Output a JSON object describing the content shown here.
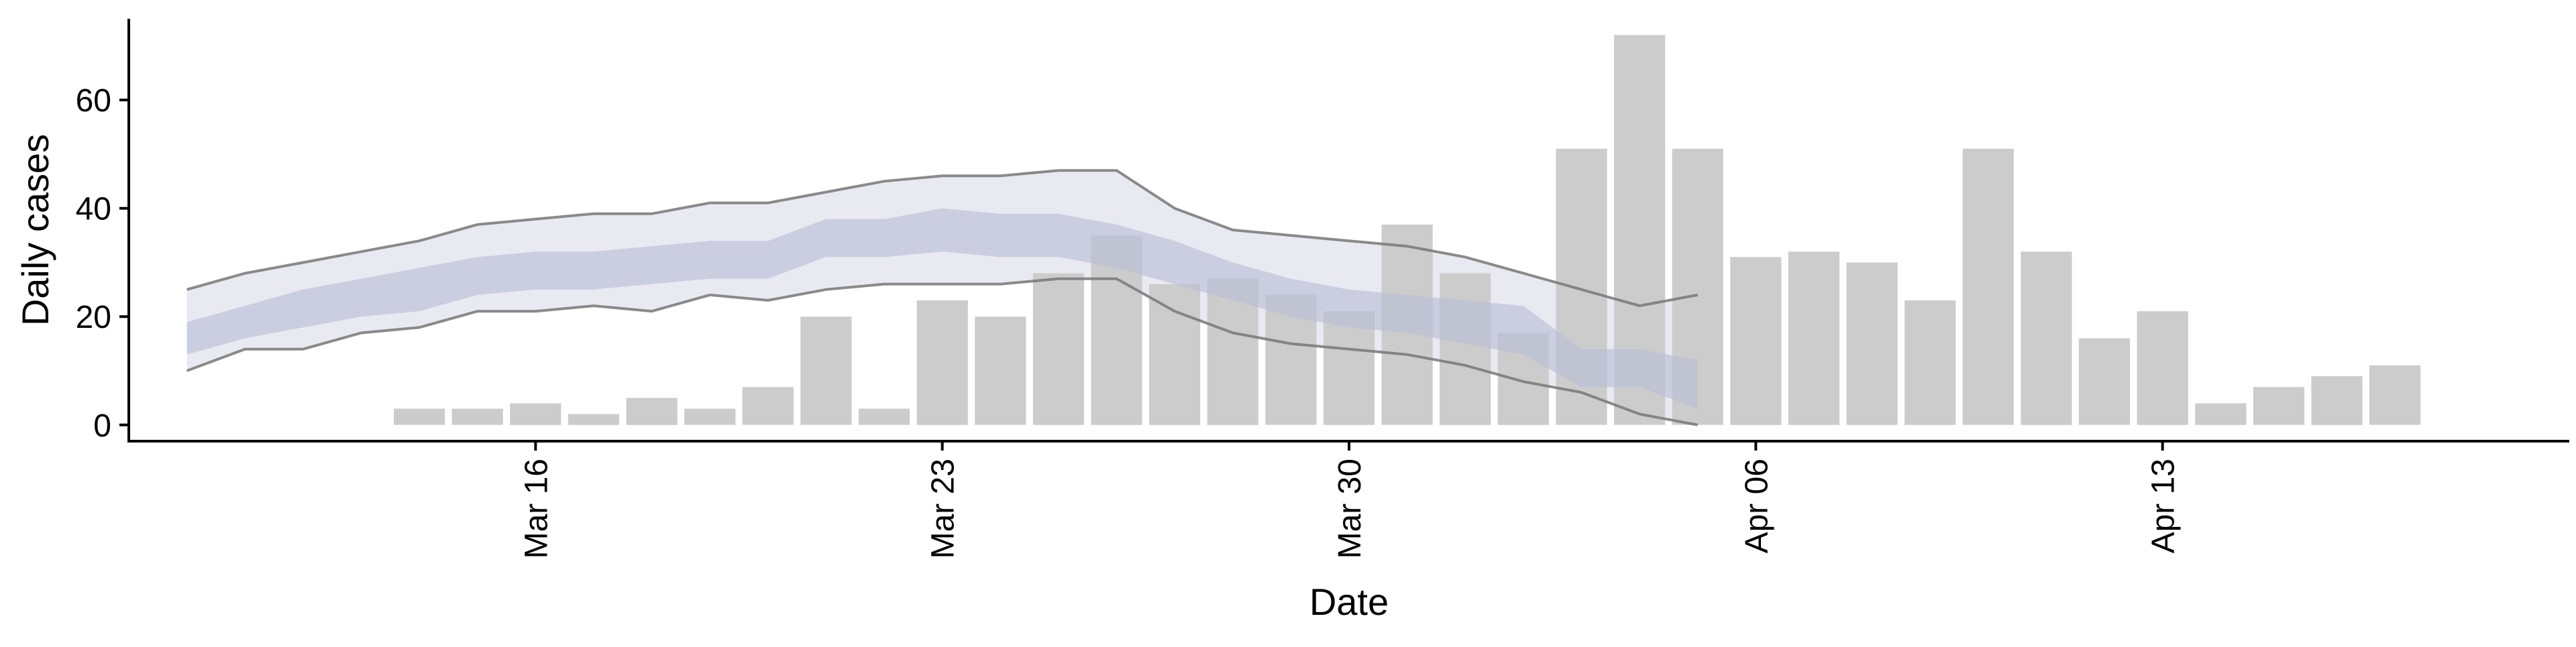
{
  "chart_data": {
    "type": "bar",
    "title": "",
    "xlabel": "Date",
    "ylabel": "Daily cases",
    "ylim": [
      -3,
      75
    ],
    "y_ticks": [
      0,
      20,
      40,
      60
    ],
    "y_tick_labels": [
      "0",
      "20",
      "40",
      "60"
    ],
    "x_ticks": [
      {
        "date": "2020-03-16",
        "label": "Mar 16"
      },
      {
        "date": "2020-03-23",
        "label": "Mar 23"
      },
      {
        "date": "2020-03-30",
        "label": "Mar 30"
      },
      {
        "date": "2020-04-06",
        "label": "Apr 06"
      },
      {
        "date": "2020-04-13",
        "label": "Apr 13"
      }
    ],
    "x_range": [
      "2020-03-09",
      "2020-04-20"
    ],
    "grid": false,
    "legend": "none",
    "colors": {
      "bars": "#cccccc",
      "outer_band": "#e9eaf1",
      "inner_band": "#b6bdd5",
      "band_lines": "#777777"
    },
    "bars": [
      {
        "date": "2020-03-14",
        "value": 3
      },
      {
        "date": "2020-03-15",
        "value": 3
      },
      {
        "date": "2020-03-16",
        "value": 4
      },
      {
        "date": "2020-03-17",
        "value": 2
      },
      {
        "date": "2020-03-18",
        "value": 5
      },
      {
        "date": "2020-03-19",
        "value": 3
      },
      {
        "date": "2020-03-20",
        "value": 7
      },
      {
        "date": "2020-03-21",
        "value": 20
      },
      {
        "date": "2020-03-22",
        "value": 3
      },
      {
        "date": "2020-03-23",
        "value": 23
      },
      {
        "date": "2020-03-24",
        "value": 20
      },
      {
        "date": "2020-03-25",
        "value": 28
      },
      {
        "date": "2020-03-26",
        "value": 35
      },
      {
        "date": "2020-03-27",
        "value": 26
      },
      {
        "date": "2020-03-28",
        "value": 27
      },
      {
        "date": "2020-03-29",
        "value": 24
      },
      {
        "date": "2020-03-30",
        "value": 21
      },
      {
        "date": "2020-03-31",
        "value": 37
      },
      {
        "date": "2020-04-01",
        "value": 28
      },
      {
        "date": "2020-04-02",
        "value": 17
      },
      {
        "date": "2020-04-03",
        "value": 51
      },
      {
        "date": "2020-04-04",
        "value": 72
      },
      {
        "date": "2020-04-05",
        "value": 51
      },
      {
        "date": "2020-04-06",
        "value": 31
      },
      {
        "date": "2020-04-07",
        "value": 32
      },
      {
        "date": "2020-04-08",
        "value": 30
      },
      {
        "date": "2020-04-09",
        "value": 23
      },
      {
        "date": "2020-04-10",
        "value": 51
      },
      {
        "date": "2020-04-11",
        "value": 32
      },
      {
        "date": "2020-04-12",
        "value": 16
      },
      {
        "date": "2020-04-13",
        "value": 21
      },
      {
        "date": "2020-04-14",
        "value": 4
      },
      {
        "date": "2020-04-15",
        "value": 7
      },
      {
        "date": "2020-04-16",
        "value": 9
      },
      {
        "date": "2020-04-17",
        "value": 11
      }
    ],
    "bands": [
      {
        "date": "2020-03-10",
        "outer_low": 10,
        "outer_high": 25,
        "inner_low": 13,
        "inner_high": 19
      },
      {
        "date": "2020-03-11",
        "outer_low": 14,
        "outer_high": 28,
        "inner_low": 16,
        "inner_high": 22
      },
      {
        "date": "2020-03-12",
        "outer_low": 14,
        "outer_high": 30,
        "inner_low": 18,
        "inner_high": 25
      },
      {
        "date": "2020-03-13",
        "outer_low": 17,
        "outer_high": 32,
        "inner_low": 20,
        "inner_high": 27
      },
      {
        "date": "2020-03-14",
        "outer_low": 18,
        "outer_high": 34,
        "inner_low": 21,
        "inner_high": 29
      },
      {
        "date": "2020-03-15",
        "outer_low": 21,
        "outer_high": 37,
        "inner_low": 24,
        "inner_high": 31
      },
      {
        "date": "2020-03-16",
        "outer_low": 21,
        "outer_high": 38,
        "inner_low": 25,
        "inner_high": 32
      },
      {
        "date": "2020-03-17",
        "outer_low": 22,
        "outer_high": 39,
        "inner_low": 25,
        "inner_high": 32
      },
      {
        "date": "2020-03-18",
        "outer_low": 21,
        "outer_high": 39,
        "inner_low": 26,
        "inner_high": 33
      },
      {
        "date": "2020-03-19",
        "outer_low": 24,
        "outer_high": 41,
        "inner_low": 27,
        "inner_high": 34
      },
      {
        "date": "2020-03-20",
        "outer_low": 23,
        "outer_high": 41,
        "inner_low": 27,
        "inner_high": 34
      },
      {
        "date": "2020-03-21",
        "outer_low": 25,
        "outer_high": 43,
        "inner_low": 31,
        "inner_high": 38
      },
      {
        "date": "2020-03-22",
        "outer_low": 26,
        "outer_high": 45,
        "inner_low": 31,
        "inner_high": 38
      },
      {
        "date": "2020-03-23",
        "outer_low": 26,
        "outer_high": 46,
        "inner_low": 32,
        "inner_high": 40
      },
      {
        "date": "2020-03-24",
        "outer_low": 26,
        "outer_high": 46,
        "inner_low": 31,
        "inner_high": 39
      },
      {
        "date": "2020-03-25",
        "outer_low": 27,
        "outer_high": 47,
        "inner_low": 31,
        "inner_high": 39
      },
      {
        "date": "2020-03-26",
        "outer_low": 27,
        "outer_high": 47,
        "inner_low": 29,
        "inner_high": 37
      },
      {
        "date": "2020-03-27",
        "outer_low": 21,
        "outer_high": 40,
        "inner_low": 26,
        "inner_high": 34
      },
      {
        "date": "2020-03-28",
        "outer_low": 17,
        "outer_high": 36,
        "inner_low": 23,
        "inner_high": 30
      },
      {
        "date": "2020-03-29",
        "outer_low": 15,
        "outer_high": 35,
        "inner_low": 20,
        "inner_high": 27
      },
      {
        "date": "2020-03-30",
        "outer_low": 14,
        "outer_high": 34,
        "inner_low": 18,
        "inner_high": 25
      },
      {
        "date": "2020-03-31",
        "outer_low": 13,
        "outer_high": 33,
        "inner_low": 17,
        "inner_high": 24
      },
      {
        "date": "2020-04-01",
        "outer_low": 11,
        "outer_high": 31,
        "inner_low": 15,
        "inner_high": 23
      },
      {
        "date": "2020-04-02",
        "outer_low": 8,
        "outer_high": 28,
        "inner_low": 13,
        "inner_high": 22
      },
      {
        "date": "2020-04-03",
        "outer_low": 6,
        "outer_high": 25,
        "inner_low": 7,
        "inner_high": 14
      },
      {
        "date": "2020-04-04",
        "outer_low": 2,
        "outer_high": 22,
        "inner_low": 7,
        "inner_high": 14
      },
      {
        "date": "2020-04-05",
        "outer_low": 0,
        "outer_high": 24,
        "inner_low": 3,
        "inner_high": 12
      }
    ]
  }
}
